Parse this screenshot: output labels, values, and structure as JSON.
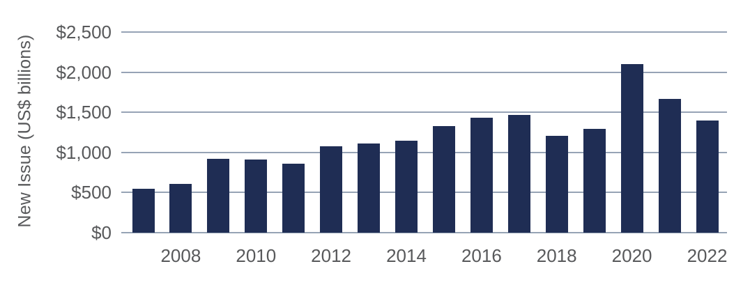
{
  "chart_data": {
    "type": "bar",
    "title": "",
    "ylabel": "New Issue (US$ billions)",
    "xlabel": "",
    "ylim": [
      0,
      2500
    ],
    "grid": true,
    "legend": null,
    "categories": [
      "2007",
      "2008",
      "2009",
      "2010",
      "2011",
      "2012",
      "2013",
      "2014",
      "2015",
      "2016",
      "2017",
      "2018",
      "2019",
      "2020",
      "2021",
      "2022"
    ],
    "values": [
      550,
      610,
      920,
      910,
      860,
      1080,
      1110,
      1150,
      1330,
      1430,
      1470,
      1210,
      1290,
      2100,
      1670,
      1400
    ],
    "yticks": [
      {
        "value": 0,
        "label": "$0"
      },
      {
        "value": 500,
        "label": "$500"
      },
      {
        "value": 1000,
        "label": "$1,000"
      },
      {
        "value": 1500,
        "label": "$1,500"
      },
      {
        "value": 2000,
        "label": "$2,000"
      },
      {
        "value": 2500,
        "label": "$2,500"
      }
    ],
    "xtick_labels": [
      "2008",
      "2010",
      "2012",
      "2014",
      "2016",
      "2018",
      "2020",
      "2022"
    ],
    "colors": {
      "bar": "#1f2d54",
      "grid": "#96a3b5",
      "text": "#58595b",
      "background": "#ffffff"
    }
  }
}
